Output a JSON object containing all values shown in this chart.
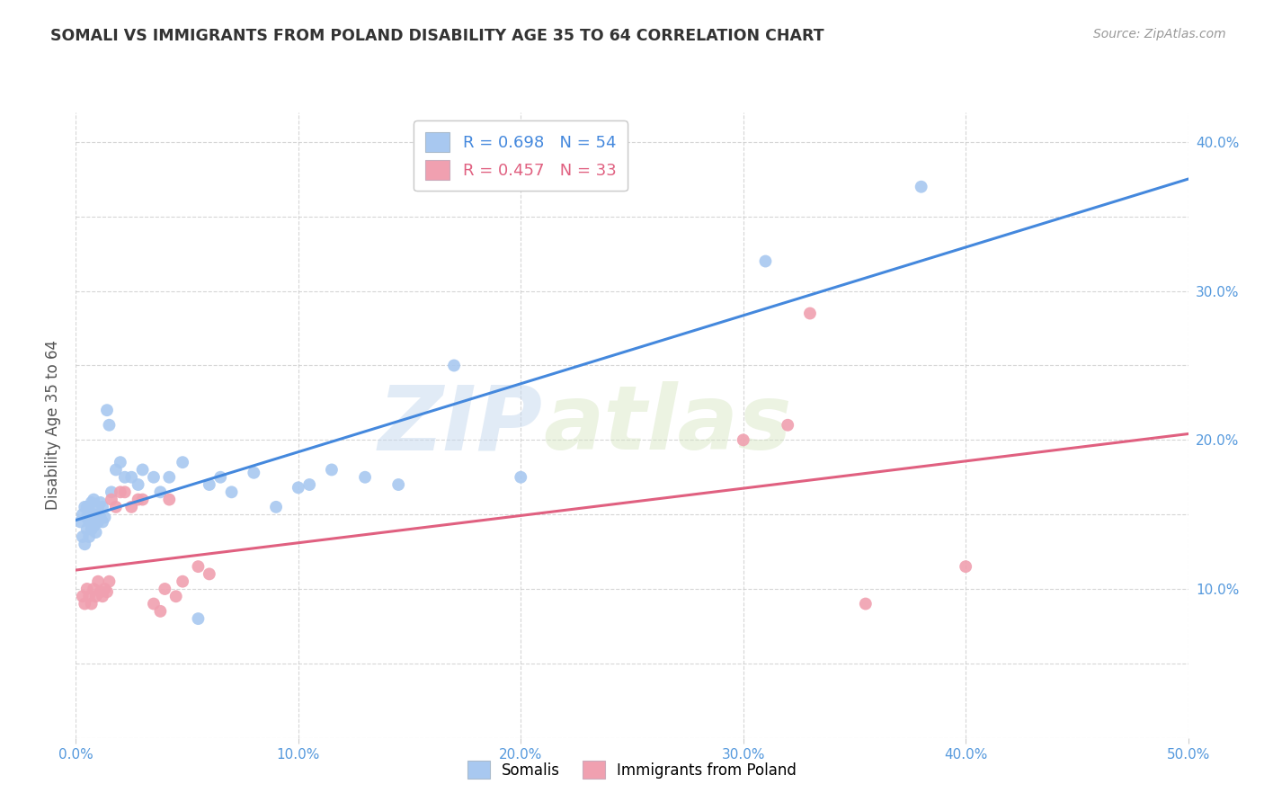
{
  "title": "SOMALI VS IMMIGRANTS FROM POLAND DISABILITY AGE 35 TO 64 CORRELATION CHART",
  "source": "Source: ZipAtlas.com",
  "ylabel": "Disability Age 35 to 64",
  "xlim": [
    0.0,
    0.5
  ],
  "ylim": [
    0.0,
    0.42
  ],
  "xticks": [
    0.0,
    0.1,
    0.2,
    0.3,
    0.4,
    0.5
  ],
  "yticks": [
    0.1,
    0.2,
    0.3,
    0.4
  ],
  "xticklabels": [
    "0.0%",
    "10.0%",
    "20.0%",
    "30.0%",
    "40.0%",
    "50.0%"
  ],
  "yticklabels": [
    "10.0%",
    "20.0%",
    "30.0%",
    "40.0%"
  ],
  "somali_R": 0.698,
  "somali_N": 54,
  "poland_R": 0.457,
  "poland_N": 33,
  "somali_color": "#a8c8f0",
  "poland_color": "#f0a0b0",
  "somali_line_color": "#4488dd",
  "poland_line_color": "#e06080",
  "background_color": "#ffffff",
  "watermark_zip": "ZIP",
  "watermark_atlas": "atlas",
  "somali_x": [
    0.002,
    0.003,
    0.003,
    0.004,
    0.004,
    0.005,
    0.005,
    0.005,
    0.006,
    0.006,
    0.006,
    0.007,
    0.007,
    0.007,
    0.008,
    0.008,
    0.008,
    0.009,
    0.009,
    0.01,
    0.01,
    0.011,
    0.011,
    0.012,
    0.012,
    0.013,
    0.014,
    0.015,
    0.016,
    0.018,
    0.02,
    0.022,
    0.025,
    0.028,
    0.03,
    0.035,
    0.038,
    0.042,
    0.048,
    0.055,
    0.06,
    0.065,
    0.07,
    0.08,
    0.09,
    0.1,
    0.105,
    0.115,
    0.13,
    0.145,
    0.17,
    0.2,
    0.31,
    0.38
  ],
  "somali_y": [
    0.145,
    0.135,
    0.15,
    0.13,
    0.155,
    0.14,
    0.148,
    0.155,
    0.135,
    0.145,
    0.152,
    0.14,
    0.15,
    0.158,
    0.142,
    0.15,
    0.16,
    0.138,
    0.148,
    0.145,
    0.155,
    0.148,
    0.158,
    0.145,
    0.155,
    0.148,
    0.22,
    0.21,
    0.165,
    0.18,
    0.185,
    0.175,
    0.175,
    0.17,
    0.18,
    0.175,
    0.165,
    0.175,
    0.185,
    0.08,
    0.17,
    0.175,
    0.165,
    0.178,
    0.155,
    0.168,
    0.17,
    0.18,
    0.175,
    0.17,
    0.25,
    0.175,
    0.32,
    0.37
  ],
  "poland_x": [
    0.003,
    0.004,
    0.005,
    0.006,
    0.007,
    0.008,
    0.009,
    0.01,
    0.011,
    0.012,
    0.013,
    0.014,
    0.015,
    0.016,
    0.018,
    0.02,
    0.022,
    0.025,
    0.028,
    0.03,
    0.035,
    0.038,
    0.04,
    0.042,
    0.045,
    0.048,
    0.055,
    0.06,
    0.3,
    0.32,
    0.33,
    0.355,
    0.4
  ],
  "poland_y": [
    0.095,
    0.09,
    0.1,
    0.095,
    0.09,
    0.1,
    0.095,
    0.105,
    0.098,
    0.095,
    0.1,
    0.098,
    0.105,
    0.16,
    0.155,
    0.165,
    0.165,
    0.155,
    0.16,
    0.16,
    0.09,
    0.085,
    0.1,
    0.16,
    0.095,
    0.105,
    0.115,
    0.11,
    0.2,
    0.21,
    0.285,
    0.09,
    0.115
  ]
}
